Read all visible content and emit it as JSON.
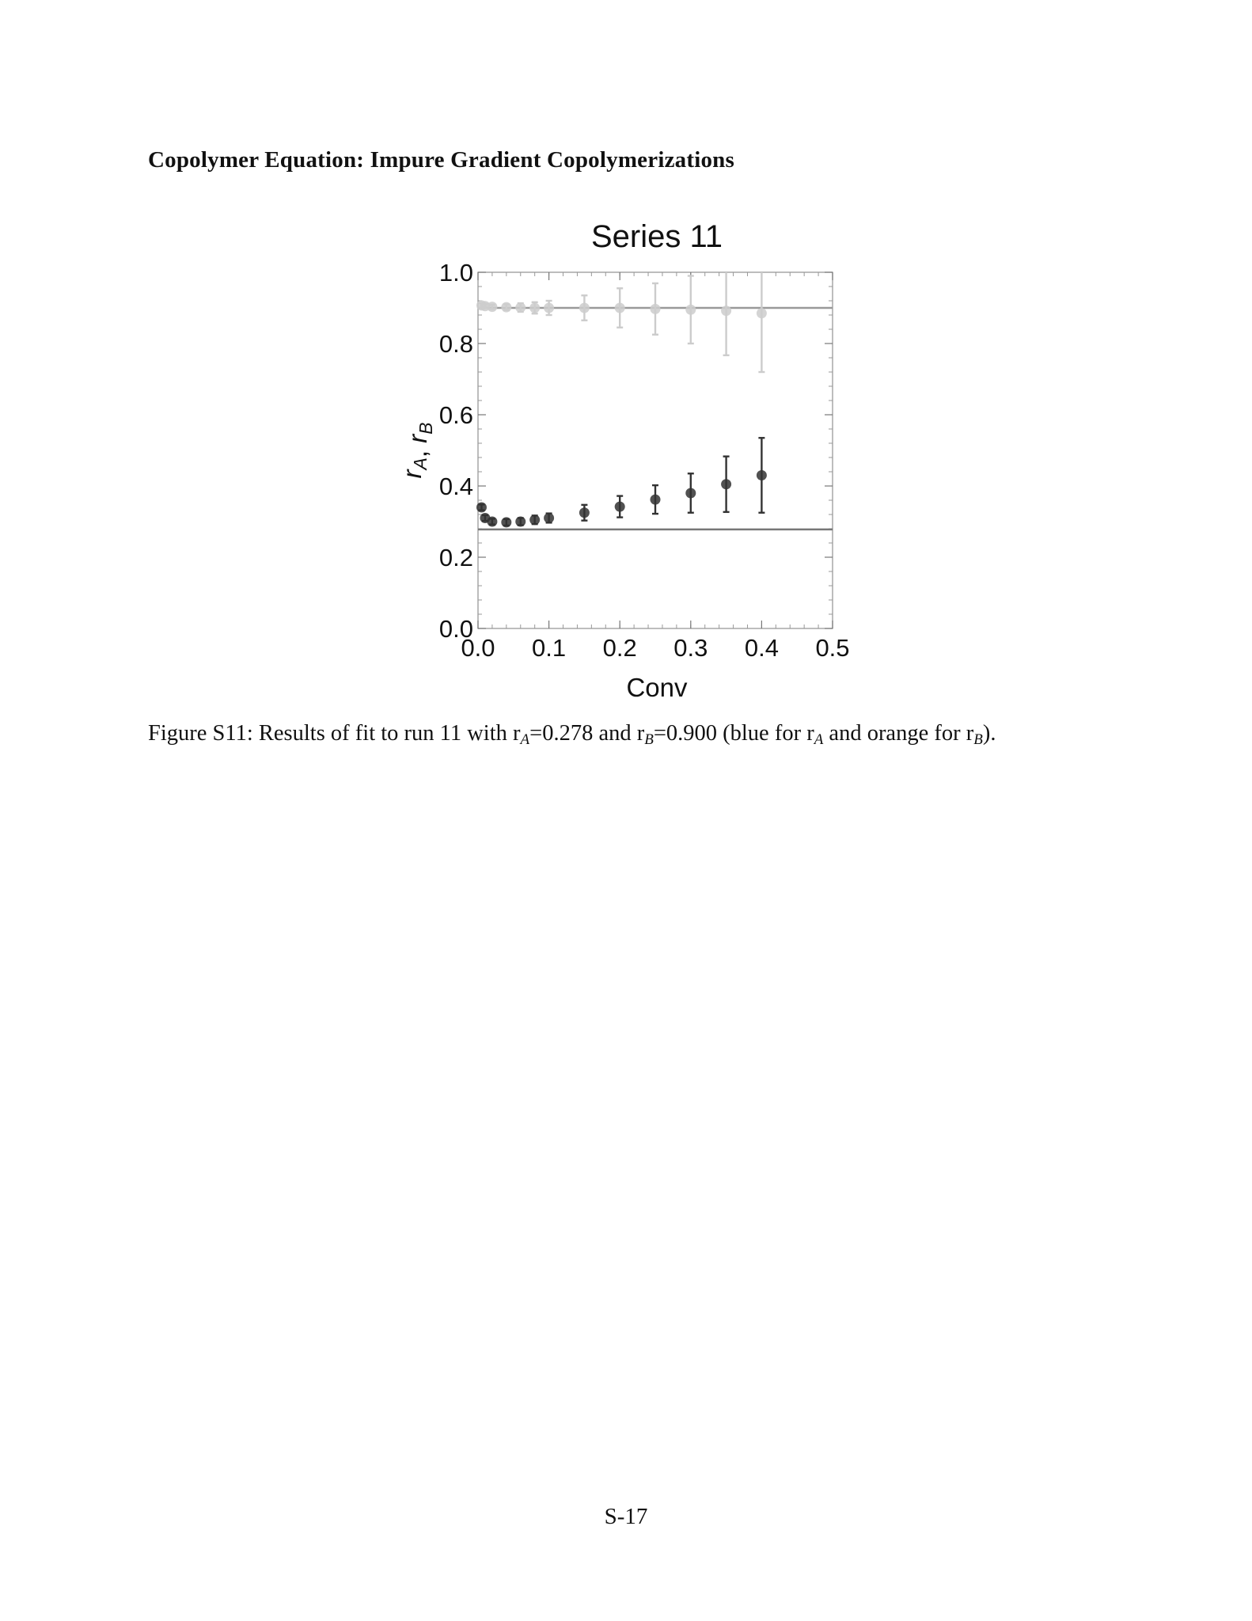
{
  "page": {
    "section_heading": "Copolymer Equation: Impure Gradient Copolymerizations",
    "caption": {
      "parts": [
        {
          "text": "Figure S11: Results of fit to run 11 with r"
        },
        {
          "sub": "A"
        },
        {
          "text": "=0.278 and r"
        },
        {
          "sub": "B"
        },
        {
          "text": "=0.900 (blue for r"
        },
        {
          "sub": "A"
        },
        {
          "text": " and orange for r"
        },
        {
          "sub": "B"
        },
        {
          "text": ")."
        }
      ]
    },
    "page_number": "S-17"
  },
  "chart_data": {
    "type": "scatter",
    "title": "Series 11",
    "xlabel": "Conv",
    "ylabel": {
      "main": "r",
      "sub1": "A",
      "sep": ", ",
      "main2": "r",
      "sub2": "B"
    },
    "xlim": [
      0.0,
      0.5
    ],
    "ylim": [
      0.0,
      1.0
    ],
    "xticks": [
      0.0,
      0.1,
      0.2,
      0.3,
      0.4,
      0.5
    ],
    "xtick_labels": [
      "0.0",
      "0.1",
      "0.2",
      "0.3",
      "0.4",
      "0.5"
    ],
    "yticks": [
      0.0,
      0.2,
      0.4,
      0.6,
      0.8,
      1.0
    ],
    "ytick_labels": [
      "0.0",
      "0.2",
      "0.4",
      "0.6",
      "0.8",
      "1.0"
    ],
    "grid": false,
    "series": [
      {
        "color": "#333333",
        "fit_value": 0.278,
        "fit_color": "#777777",
        "points": [
          {
            "x": 0.005,
            "y": 0.34,
            "err": 0.008
          },
          {
            "x": 0.01,
            "y": 0.31,
            "err": 0.008
          },
          {
            "x": 0.02,
            "y": 0.3,
            "err": 0.008
          },
          {
            "x": 0.04,
            "y": 0.298,
            "err": 0.009
          },
          {
            "x": 0.06,
            "y": 0.3,
            "err": 0.01
          },
          {
            "x": 0.08,
            "y": 0.305,
            "err": 0.012
          },
          {
            "x": 0.1,
            "y": 0.31,
            "err": 0.013
          },
          {
            "x": 0.15,
            "y": 0.325,
            "err": 0.022
          },
          {
            "x": 0.2,
            "y": 0.342,
            "err": 0.03
          },
          {
            "x": 0.25,
            "y": 0.362,
            "err": 0.04
          },
          {
            "x": 0.3,
            "y": 0.38,
            "err": 0.055
          },
          {
            "x": 0.35,
            "y": 0.405,
            "err": 0.078
          },
          {
            "x": 0.4,
            "y": 0.43,
            "err": 0.105
          }
        ]
      },
      {
        "color": "#cccccc",
        "fit_value": 0.9,
        "fit_color": "#999999",
        "points": [
          {
            "x": 0.005,
            "y": 0.907,
            "err": 0.006
          },
          {
            "x": 0.01,
            "y": 0.905,
            "err": 0.006
          },
          {
            "x": 0.02,
            "y": 0.903,
            "err": 0.006
          },
          {
            "x": 0.04,
            "y": 0.902,
            "err": 0.008
          },
          {
            "x": 0.06,
            "y": 0.901,
            "err": 0.012
          },
          {
            "x": 0.08,
            "y": 0.9,
            "err": 0.016
          },
          {
            "x": 0.1,
            "y": 0.9,
            "err": 0.02
          },
          {
            "x": 0.15,
            "y": 0.9,
            "err": 0.035
          },
          {
            "x": 0.2,
            "y": 0.9,
            "err": 0.055
          },
          {
            "x": 0.25,
            "y": 0.897,
            "err": 0.072
          },
          {
            "x": 0.3,
            "y": 0.895,
            "err": 0.095
          },
          {
            "x": 0.35,
            "y": 0.892,
            "err": 0.125
          },
          {
            "x": 0.4,
            "y": 0.885,
            "err": 0.165
          }
        ]
      }
    ]
  }
}
